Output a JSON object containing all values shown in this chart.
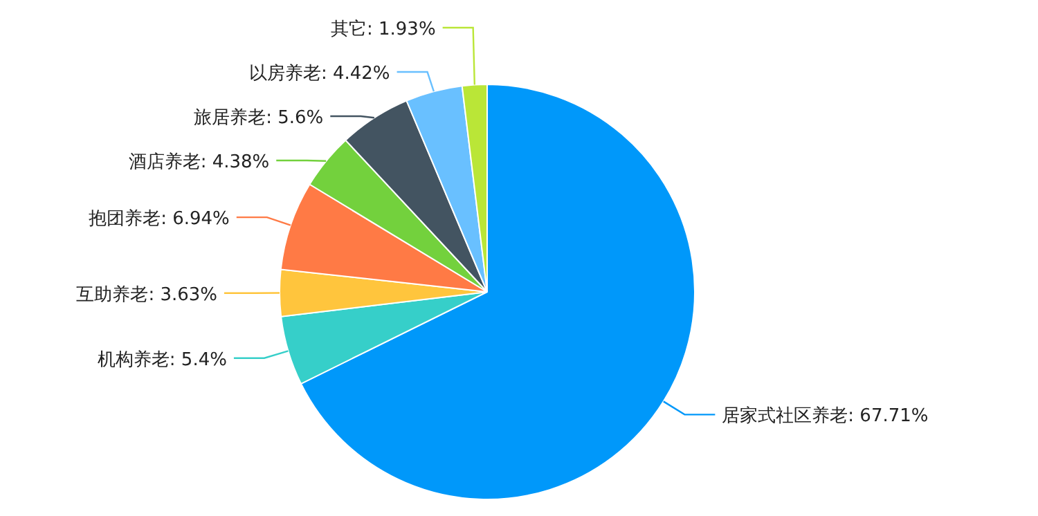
{
  "chart_data": {
    "type": "pie",
    "categories": [
      "居家式社区养老",
      "机构养老",
      "互助养老",
      "抱团养老",
      "酒店养老",
      "旅居养老",
      "以房养老",
      "其它"
    ],
    "values": [
      67.71,
      5.4,
      3.63,
      6.94,
      4.38,
      5.6,
      4.42,
      1.93
    ],
    "value_labels": [
      "67.71%",
      "5.4%",
      "3.63%",
      "6.94%",
      "4.38%",
      "5.6%",
      "4.42%",
      "1.93%"
    ],
    "colors": [
      "#0098fa",
      "#36cfc9",
      "#ffc53d",
      "#ff7a45",
      "#73d13d",
      "#435461",
      "#69c0ff",
      "#bae637"
    ]
  }
}
